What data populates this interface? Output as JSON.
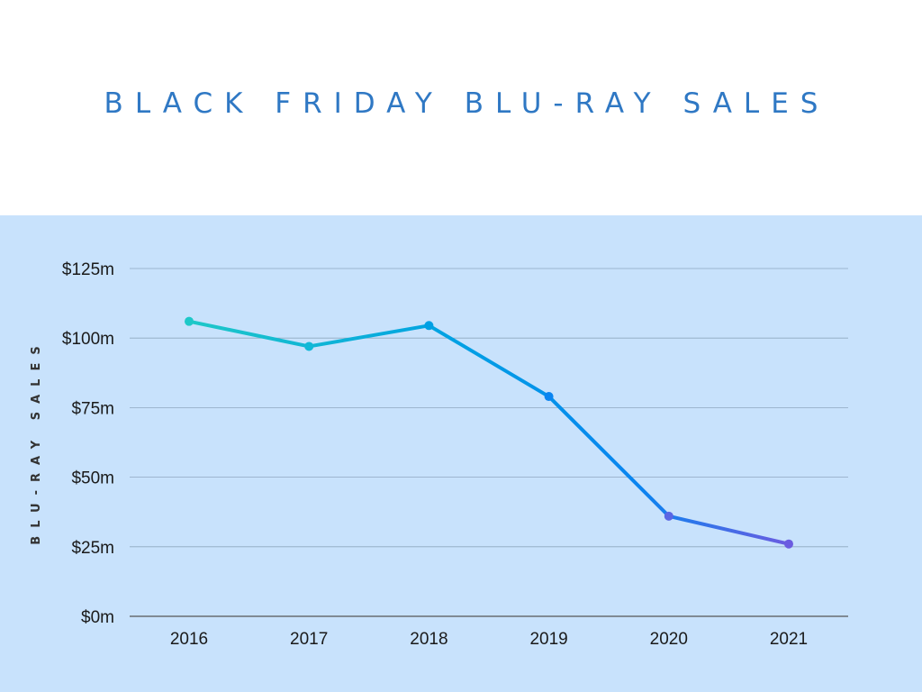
{
  "chart_data": {
    "type": "line",
    "title": "BLACK FRIDAY BLU-RAY SALES",
    "xlabel": "",
    "ylabel": "BLU-RAY SALES",
    "categories": [
      "2016",
      "2017",
      "2018",
      "2019",
      "2020",
      "2021"
    ],
    "series": [
      {
        "values": [
          106,
          97,
          104.5,
          79,
          36,
          26
        ]
      }
    ],
    "ylim": [
      0,
      125
    ],
    "yticks": [
      0,
      25,
      50,
      75,
      100,
      125
    ],
    "ytick_labels": [
      "$0m",
      "$25m",
      "$50m",
      "$75m",
      "$100m",
      "$125m"
    ],
    "grid": true,
    "legend": "none",
    "gradient_colors": [
      "#1ec8c8",
      "#00a0e4",
      "#0a84f0",
      "#6b5ce0"
    ],
    "grid_color": "#8fa8c0",
    "axis_color": "#555555"
  }
}
